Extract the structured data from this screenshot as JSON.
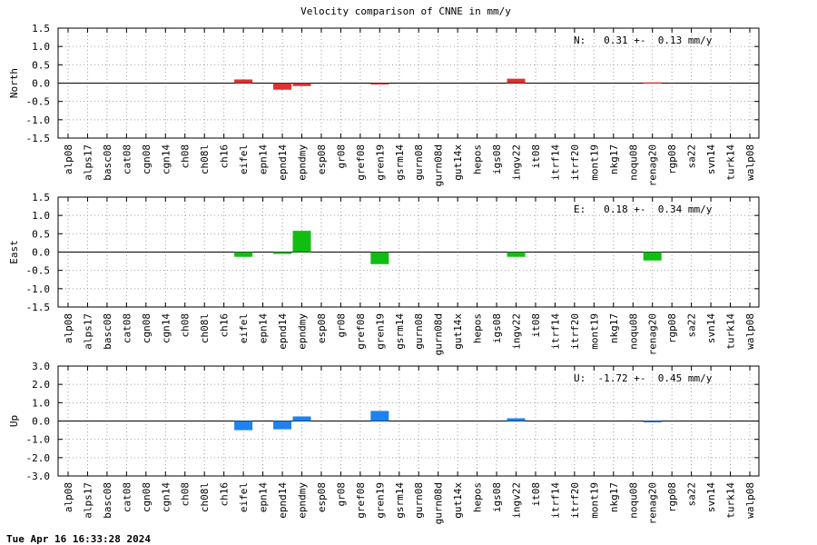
{
  "title": "Velocity comparison of CNNE in mm/y",
  "footer": "Tue Apr 16 16:33:28 2024",
  "categories": [
    "alp08",
    "alps17",
    "basc08",
    "cat08",
    "cgn08",
    "cgn14",
    "ch08",
    "ch08l",
    "ch16",
    "eifel",
    "epn14",
    "epnd14",
    "epndmy",
    "esp08",
    "gr08",
    "gref08",
    "gren19",
    "gsrm14",
    "gurn08",
    "gurn08d",
    "gut14x",
    "hepos",
    "igs08",
    "ingv22",
    "it08",
    "itrf14",
    "itrf20",
    "mont19",
    "nkg17",
    "noqu08",
    "renag20",
    "rgp08",
    "sa22",
    "svn14",
    "turk14",
    "walp08"
  ],
  "chart_data": [
    {
      "type": "bar",
      "ylabel": "North",
      "ylim": [
        -1.5,
        1.5
      ],
      "yticks": [
        "1.5",
        "1.0",
        "0.5",
        "0.0",
        "-0.5",
        "-1.0",
        "-1.5"
      ],
      "grid": true,
      "color": "#e03030",
      "annotation": "N:   0.31 +-  0.13 mm/y",
      "values": {
        "eifel": 0.1,
        "epnd14": -0.18,
        "epndmy": -0.08,
        "gren19": -0.02,
        "ingv22": 0.12,
        "renag20": 0.02
      }
    },
    {
      "type": "bar",
      "ylabel": "East",
      "ylim": [
        -1.5,
        1.5
      ],
      "yticks": [
        "1.5",
        "1.0",
        "0.5",
        "0.0",
        "-0.5",
        "-1.0",
        "-1.5"
      ],
      "grid": true,
      "color": "#12bd12",
      "annotation": "E:   0.18 +-  0.34 mm/y",
      "values": {
        "eifel": -0.13,
        "epnd14": -0.05,
        "epndmy": 0.58,
        "gren19": -0.33,
        "ingv22": -0.13,
        "renag20": -0.23
      }
    },
    {
      "type": "bar",
      "ylabel": "Up",
      "ylim": [
        -3.0,
        3.0
      ],
      "yticks": [
        "3.0",
        "2.0",
        "1.0",
        "0.0",
        "-1.0",
        "-2.0",
        "-3.0"
      ],
      "grid": true,
      "color": "#1e82f0",
      "annotation": "U:  -1.72 +-  0.45 mm/y",
      "values": {
        "eifel": -0.5,
        "epnd14": -0.45,
        "epndmy": 0.25,
        "gren19": 0.55,
        "ingv22": 0.15,
        "renag20": -0.07
      }
    }
  ]
}
